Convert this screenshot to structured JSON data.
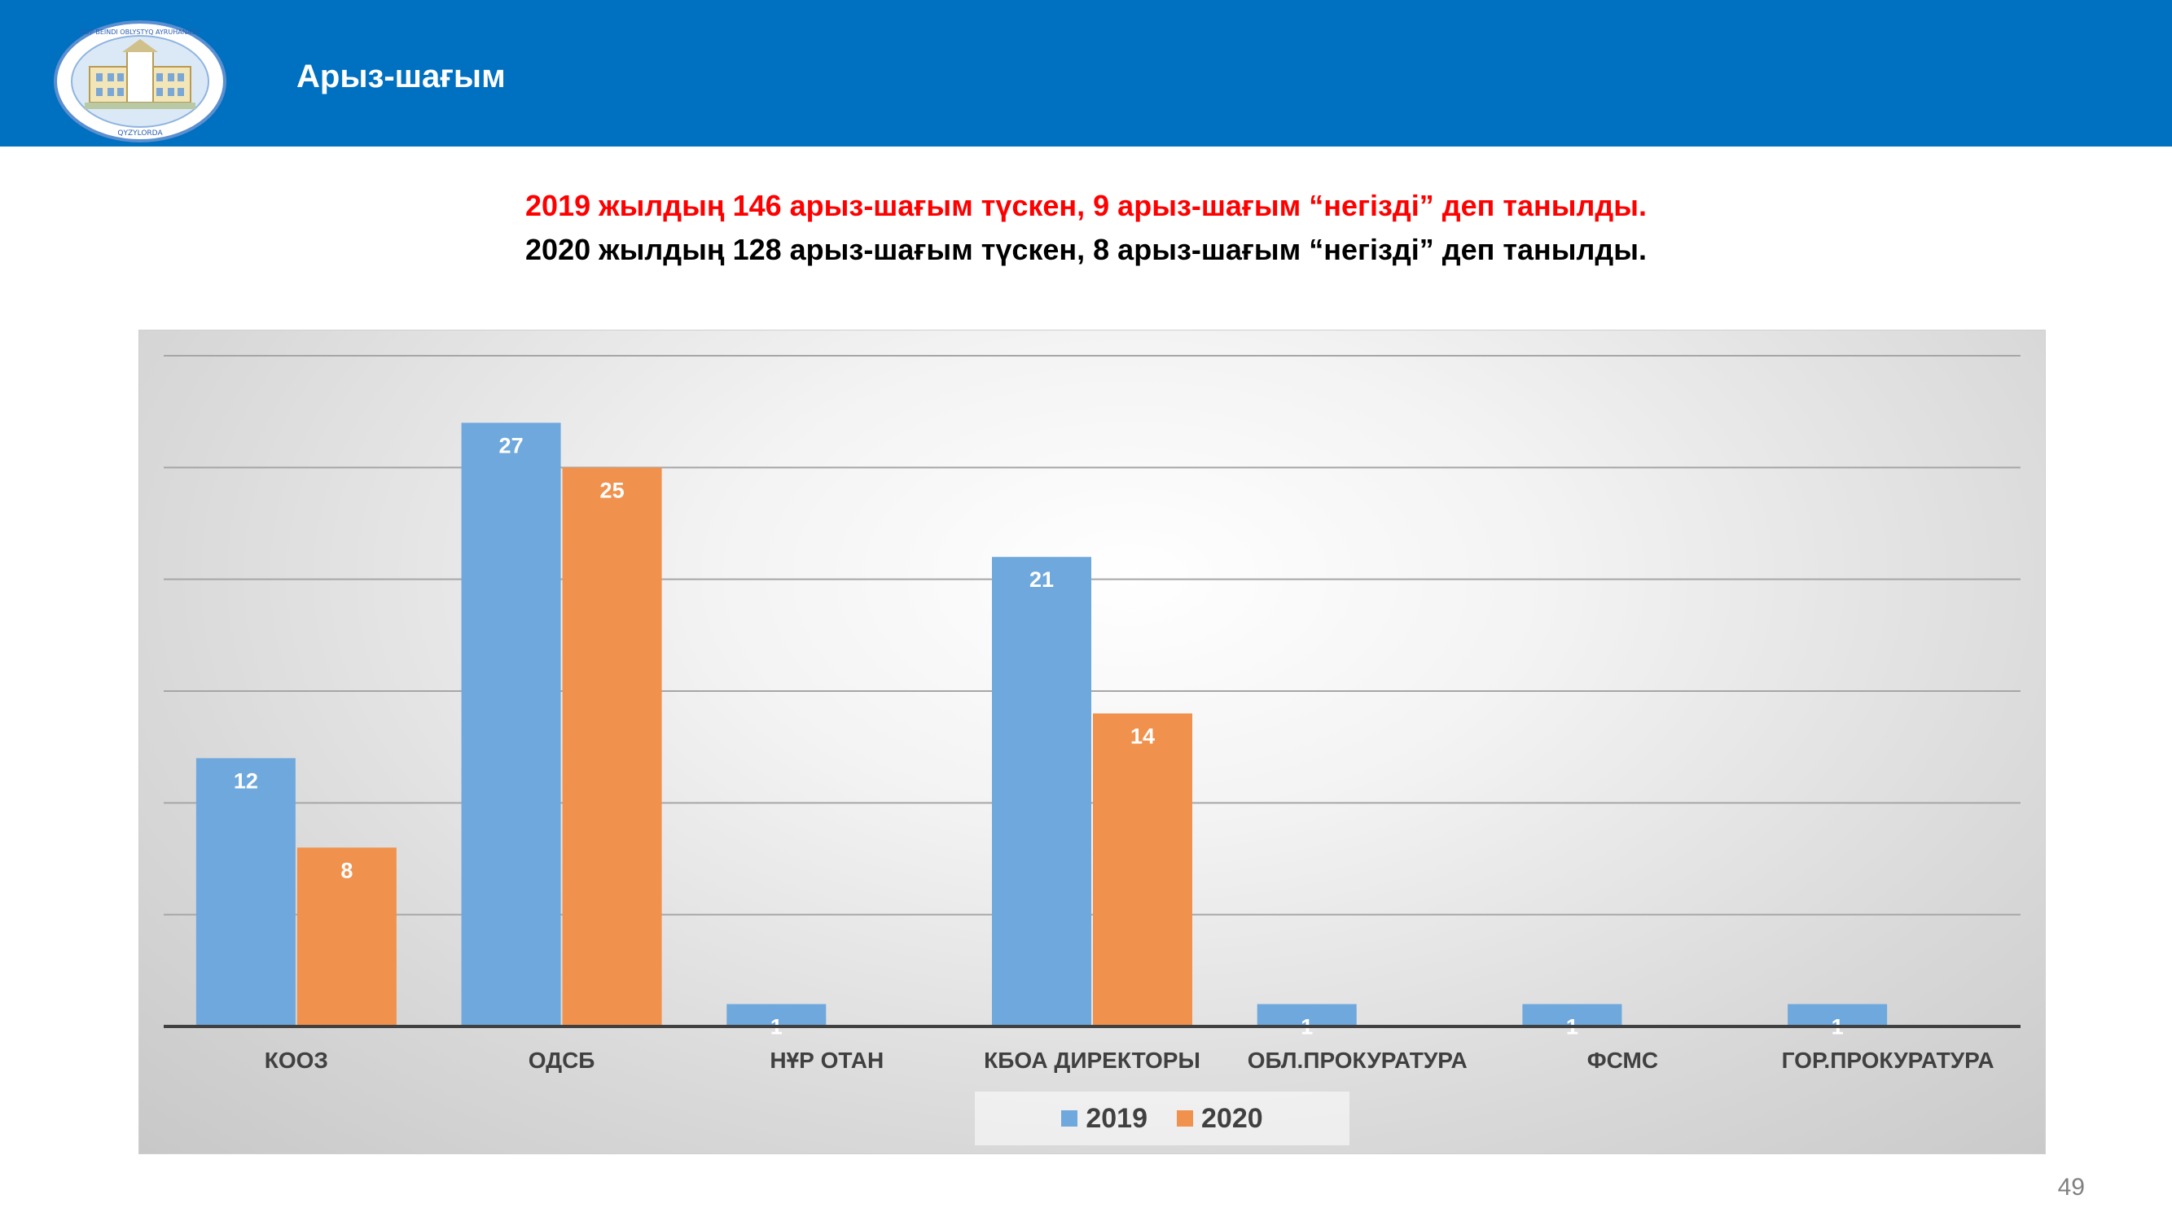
{
  "header": {
    "title": "Арыз-шағым",
    "logo_text_top": "KÖP BEINDI OBLYSTYQ AYRUHANASY",
    "logo_text_bottom": "QYZYLORDA"
  },
  "subtitle": {
    "line1": "2019 жылдың 146 арыз-шағым түскен, 9 арыз-шағым “негізді” деп танылды.",
    "line2": "2020 жылдың 128 арыз-шағым түскен,  8 арыз-шағым “негізді” деп танылды."
  },
  "colors": {
    "header_bg": "#0070c0",
    "series_2019": "#6fa8dc",
    "series_2020": "#f0914d",
    "line1_text": "#ff0000",
    "line2_text": "#000000"
  },
  "chart_data": {
    "type": "bar",
    "categories": [
      "КООЗ",
      "ОДСБ",
      "НҰР ОТАН",
      "КБОА ДИРЕКТОРЫ",
      "ОБЛ.ПРОКУРАТУРА",
      "ФСМС",
      "ГОР.ПРОКУРАТУРА"
    ],
    "series": [
      {
        "name": "2019",
        "values": [
          12,
          27,
          1,
          21,
          1,
          1,
          1
        ]
      },
      {
        "name": "2020",
        "values": [
          8,
          25,
          null,
          14,
          null,
          null,
          null
        ]
      }
    ],
    "ylim": [
      0,
      30
    ],
    "grid": true,
    "legend": "bottom"
  },
  "page_number": "49"
}
